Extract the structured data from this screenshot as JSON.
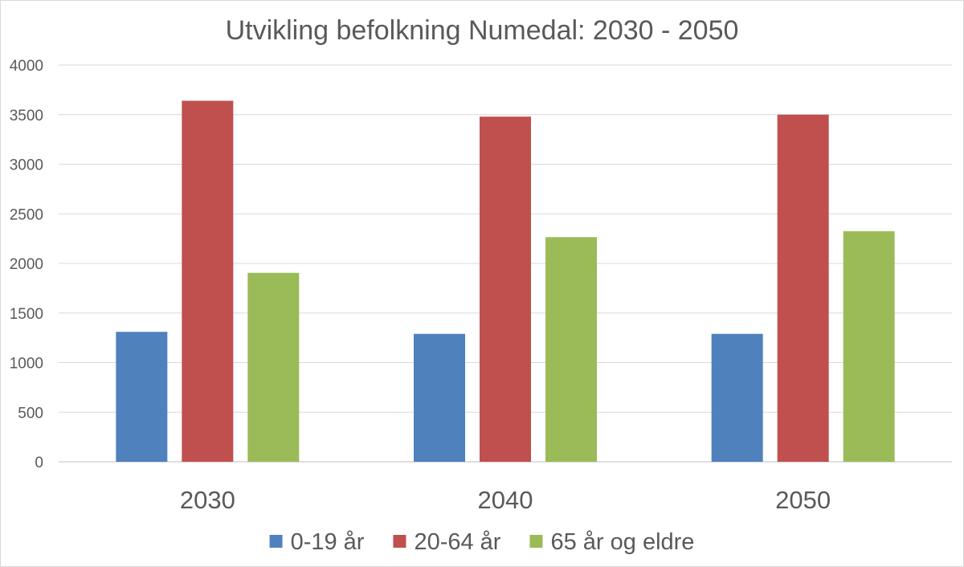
{
  "chart_data": {
    "type": "bar",
    "title": "Utvikling befolkning Numedal: 2030 - 2050",
    "xlabel": "",
    "ylabel": "",
    "categories": [
      "2030",
      "2040",
      "2050"
    ],
    "series": [
      {
        "name": "0-19 år",
        "values": [
          1310,
          1290,
          1290
        ],
        "color": "#4f81bd"
      },
      {
        "name": "20-64 år",
        "values": [
          3640,
          3480,
          3500
        ],
        "color": "#c0504d"
      },
      {
        "name": "65 år og eldre",
        "values": [
          1905,
          2265,
          2325
        ],
        "color": "#9bbb59"
      }
    ],
    "ylim": [
      0,
      4000
    ],
    "yticks": [
      "0",
      "500",
      "1000",
      "1500",
      "2000",
      "2500",
      "3000",
      "3500",
      "4000"
    ],
    "grid": true,
    "legend_position": "bottom"
  }
}
